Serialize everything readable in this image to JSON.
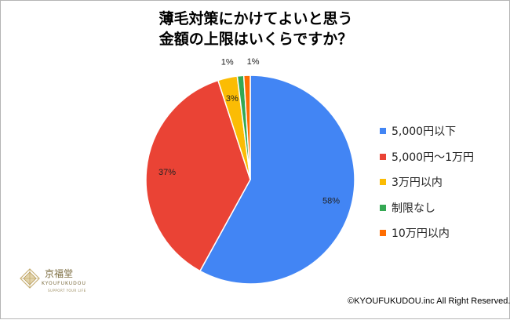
{
  "title_lines": [
    "薄毛対策にかけてよいと思う",
    "金額の上限はいくらですか？"
  ],
  "chart_data": {
    "type": "pie",
    "title": "薄毛対策にかけてよいと思う金額の上限はいくらですか？",
    "categories": [
      "5,000円以下",
      "5,000円～1万円",
      "3万円以内",
      "制限なし",
      "10万円以内"
    ],
    "values": [
      58,
      37,
      3,
      1,
      1
    ],
    "data_labels": [
      "58%",
      "37%",
      "3%",
      "1%",
      "1%"
    ],
    "colors": [
      "#4285f4",
      "#ea4335",
      "#fbbc04",
      "#34a853",
      "#ff6d01"
    ],
    "legend_position": "right",
    "start_angle": "12 o'clock",
    "direction": "clockwise"
  },
  "logo": {
    "name": "京福堂",
    "roman": "KYOUFUKUDOU",
    "sub": "SUPPORT YOUR LIFE"
  },
  "copyright": "©KYOUFUKUDOU.inc All Right Reserved."
}
